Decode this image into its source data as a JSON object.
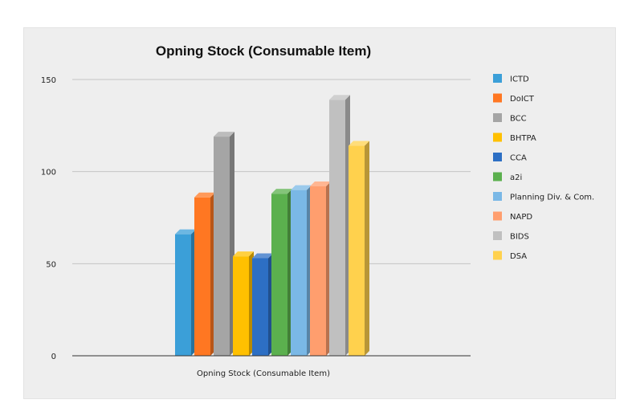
{
  "chart_data": {
    "type": "bar",
    "title": "Opning Stock (Consumable Item)",
    "xlabel": "",
    "ylabel": "",
    "categories": [
      "Opning Stock (Consumable Item)"
    ],
    "ylim": [
      0,
      150
    ],
    "yticks": [
      0,
      50,
      100,
      150
    ],
    "grid": true,
    "legend_position": "right",
    "series": [
      {
        "name": "ICTD",
        "values": [
          66
        ],
        "color": "#3b9fd8"
      },
      {
        "name": "DoICT",
        "values": [
          86
        ],
        "color": "#ff7722"
      },
      {
        "name": "BCC",
        "values": [
          119
        ],
        "color": "#a5a5a5"
      },
      {
        "name": "BHTPA",
        "values": [
          54
        ],
        "color": "#ffc000"
      },
      {
        "name": "CCA",
        "values": [
          53
        ],
        "color": "#2d6fc4"
      },
      {
        "name": "a2i",
        "values": [
          88
        ],
        "color": "#5bb04e"
      },
      {
        "name": "Planning Div. & Com.",
        "values": [
          90
        ],
        "color": "#7ab8e6"
      },
      {
        "name": "NAPD",
        "values": [
          92
        ],
        "color": "#ff9e6e"
      },
      {
        "name": "BIDS",
        "values": [
          139
        ],
        "color": "#c0c0c0"
      },
      {
        "name": "DSA",
        "values": [
          114
        ],
        "color": "#ffd14d"
      }
    ]
  }
}
